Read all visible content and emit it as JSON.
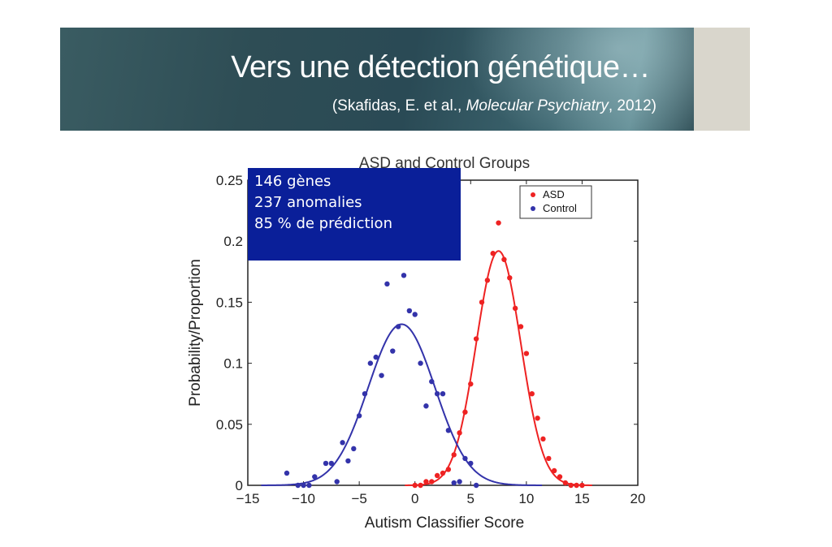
{
  "header": {
    "title": "Vers une détection génétique…",
    "citation_prefix": "(Skafidas, E. et al., ",
    "citation_journal": "Molecular Psychiatry",
    "citation_suffix": ", 2012)"
  },
  "info_box": {
    "lines": [
      "146 gènes",
      "237 anomalies",
      "85 % de prédiction"
    ],
    "background": "#0a1f99"
  },
  "chart_data": {
    "type": "scatter",
    "title": "ASD and Control Groups",
    "xlabel": "Autism Classifier Score",
    "ylabel": "Probability/Proportion",
    "xlim": [
      -15,
      20
    ],
    "ylim": [
      0,
      0.25
    ],
    "xticks": [
      -15,
      -10,
      -5,
      0,
      5,
      10,
      15,
      20
    ],
    "xtick_labels": [
      "−15",
      "−10",
      "−5",
      "0",
      "5",
      "10",
      "15",
      "20"
    ],
    "yticks": [
      0,
      0.05,
      0.1,
      0.15,
      0.2,
      0.25
    ],
    "ytick_labels": [
      "0",
      "0.05",
      "0.1",
      "0.15",
      "0.2",
      "0.25"
    ],
    "grid": false,
    "legend_position": "top-right",
    "series": [
      {
        "name": "ASD",
        "color": "#ee2222",
        "fit": {
          "mean": 7.5,
          "sd": 2.0,
          "peak": 0.192
        },
        "points": [
          [
            0,
            0.0
          ],
          [
            0.5,
            0.0
          ],
          [
            1,
            0.003
          ],
          [
            1.5,
            0.003
          ],
          [
            2,
            0.008
          ],
          [
            2.5,
            0.01
          ],
          [
            3,
            0.013
          ],
          [
            3.5,
            0.025
          ],
          [
            4,
            0.043
          ],
          [
            4.5,
            0.06
          ],
          [
            5,
            0.083
          ],
          [
            5.5,
            0.12
          ],
          [
            6,
            0.15
          ],
          [
            6.5,
            0.168
          ],
          [
            7,
            0.19
          ],
          [
            7.5,
            0.215
          ],
          [
            8,
            0.185
          ],
          [
            8.5,
            0.17
          ],
          [
            9,
            0.145
          ],
          [
            9.5,
            0.13
          ],
          [
            10,
            0.108
          ],
          [
            10.5,
            0.075
          ],
          [
            11,
            0.055
          ],
          [
            11.5,
            0.038
          ],
          [
            12,
            0.022
          ],
          [
            12.5,
            0.012
          ],
          [
            13,
            0.007
          ],
          [
            13.5,
            0.002
          ],
          [
            14,
            0.0
          ],
          [
            14.5,
            0.0
          ],
          [
            15,
            0.0
          ]
        ]
      },
      {
        "name": "Control",
        "color": "#3333aa",
        "fit": {
          "mean": -1.2,
          "sd": 3.0,
          "peak": 0.132
        },
        "points": [
          [
            -11.5,
            0.01
          ],
          [
            -10.5,
            0.0
          ],
          [
            -10,
            0.0
          ],
          [
            -9.5,
            0.0
          ],
          [
            -9,
            0.007
          ],
          [
            -8,
            0.018
          ],
          [
            -7.5,
            0.018
          ],
          [
            -7,
            0.003
          ],
          [
            -6.5,
            0.035
          ],
          [
            -6,
            0.02
          ],
          [
            -5.5,
            0.03
          ],
          [
            -5,
            0.057
          ],
          [
            -4.5,
            0.075
          ],
          [
            -4,
            0.1
          ],
          [
            -3.5,
            0.105
          ],
          [
            -3,
            0.09
          ],
          [
            -2.5,
            0.165
          ],
          [
            -2,
            0.11
          ],
          [
            -1.5,
            0.13
          ],
          [
            -1,
            0.172
          ],
          [
            -0.5,
            0.143
          ],
          [
            0,
            0.14
          ],
          [
            0.5,
            0.1
          ],
          [
            1,
            0.065
          ],
          [
            1.5,
            0.085
          ],
          [
            2,
            0.075
          ],
          [
            2.5,
            0.075
          ],
          [
            3,
            0.045
          ],
          [
            3.5,
            0.002
          ],
          [
            4,
            0.003
          ],
          [
            4.5,
            0.022
          ],
          [
            5,
            0.018
          ],
          [
            5.5,
            0.0
          ]
        ]
      }
    ]
  }
}
